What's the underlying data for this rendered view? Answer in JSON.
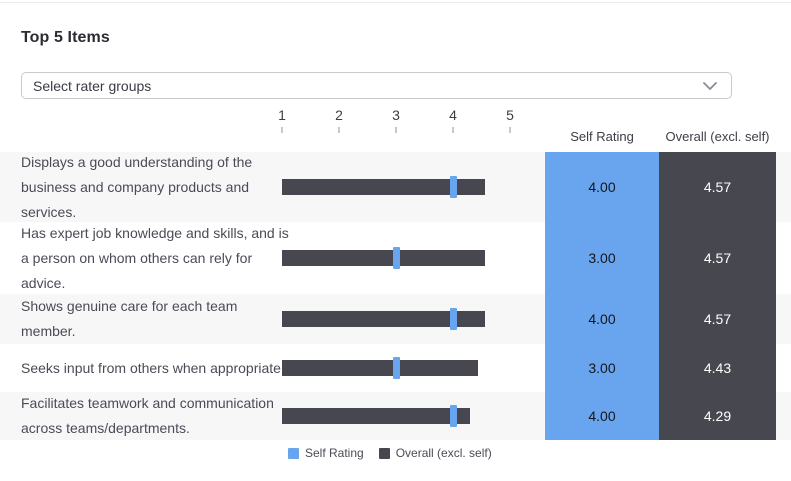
{
  "header": {
    "title": "Top 5 Items"
  },
  "filter": {
    "placeholder": "Select rater groups",
    "chevron_icon": "chevron-down"
  },
  "colors": {
    "self_blue": "#69a5ee",
    "overall_dark": "#47474f",
    "row_alt_bg": "#f7f7f8",
    "row_bg": "#ffffff"
  },
  "chart_data": {
    "type": "bar",
    "orientation": "horizontal",
    "title": "Top 5 Items",
    "axis": {
      "min": 1,
      "max": 5,
      "ticks": [
        "1",
        "2",
        "3",
        "4",
        "5"
      ]
    },
    "columns": {
      "self_header": "Self Rating",
      "overall_header": "Overall (excl. self)"
    },
    "legend_position": "bottom",
    "legend": [
      {
        "label": "Self Rating",
        "color": "#69a5ee"
      },
      {
        "label": "Overall (excl. self)",
        "color": "#47474f"
      }
    ],
    "categories": [
      "Displays a good understanding of the business and company products and services.",
      "Has expert job knowledge and skills, and is a person on whom others can rely for advice.",
      "Shows genuine care for each team member.",
      "Seeks input from others when appropriate.",
      "Facilitates teamwork and communication across teams/departments."
    ],
    "series": [
      {
        "name": "Self Rating",
        "color": "#69a5ee",
        "values": [
          4.0,
          3.0,
          4.0,
          3.0,
          4.0
        ]
      },
      {
        "name": "Overall (excl. self)",
        "color": "#47474f",
        "values": [
          4.57,
          4.57,
          4.57,
          4.43,
          4.29
        ]
      }
    ],
    "items": [
      {
        "label": "Displays a good understanding of the business and company products and services.",
        "self": "4.00",
        "overall": "4.57"
      },
      {
        "label": "Has expert job knowledge and skills, and is a person on whom others can rely for advice.",
        "self": "3.00",
        "overall": "4.57"
      },
      {
        "label": "Shows genuine care for each team member.",
        "self": "4.00",
        "overall": "4.57"
      },
      {
        "label": "Seeks input from others when appropriate.",
        "self": "3.00",
        "overall": "4.43"
      },
      {
        "label": "Facilitates teamwork and communication across teams/departments.",
        "self": "4.00",
        "overall": "4.29"
      }
    ]
  }
}
